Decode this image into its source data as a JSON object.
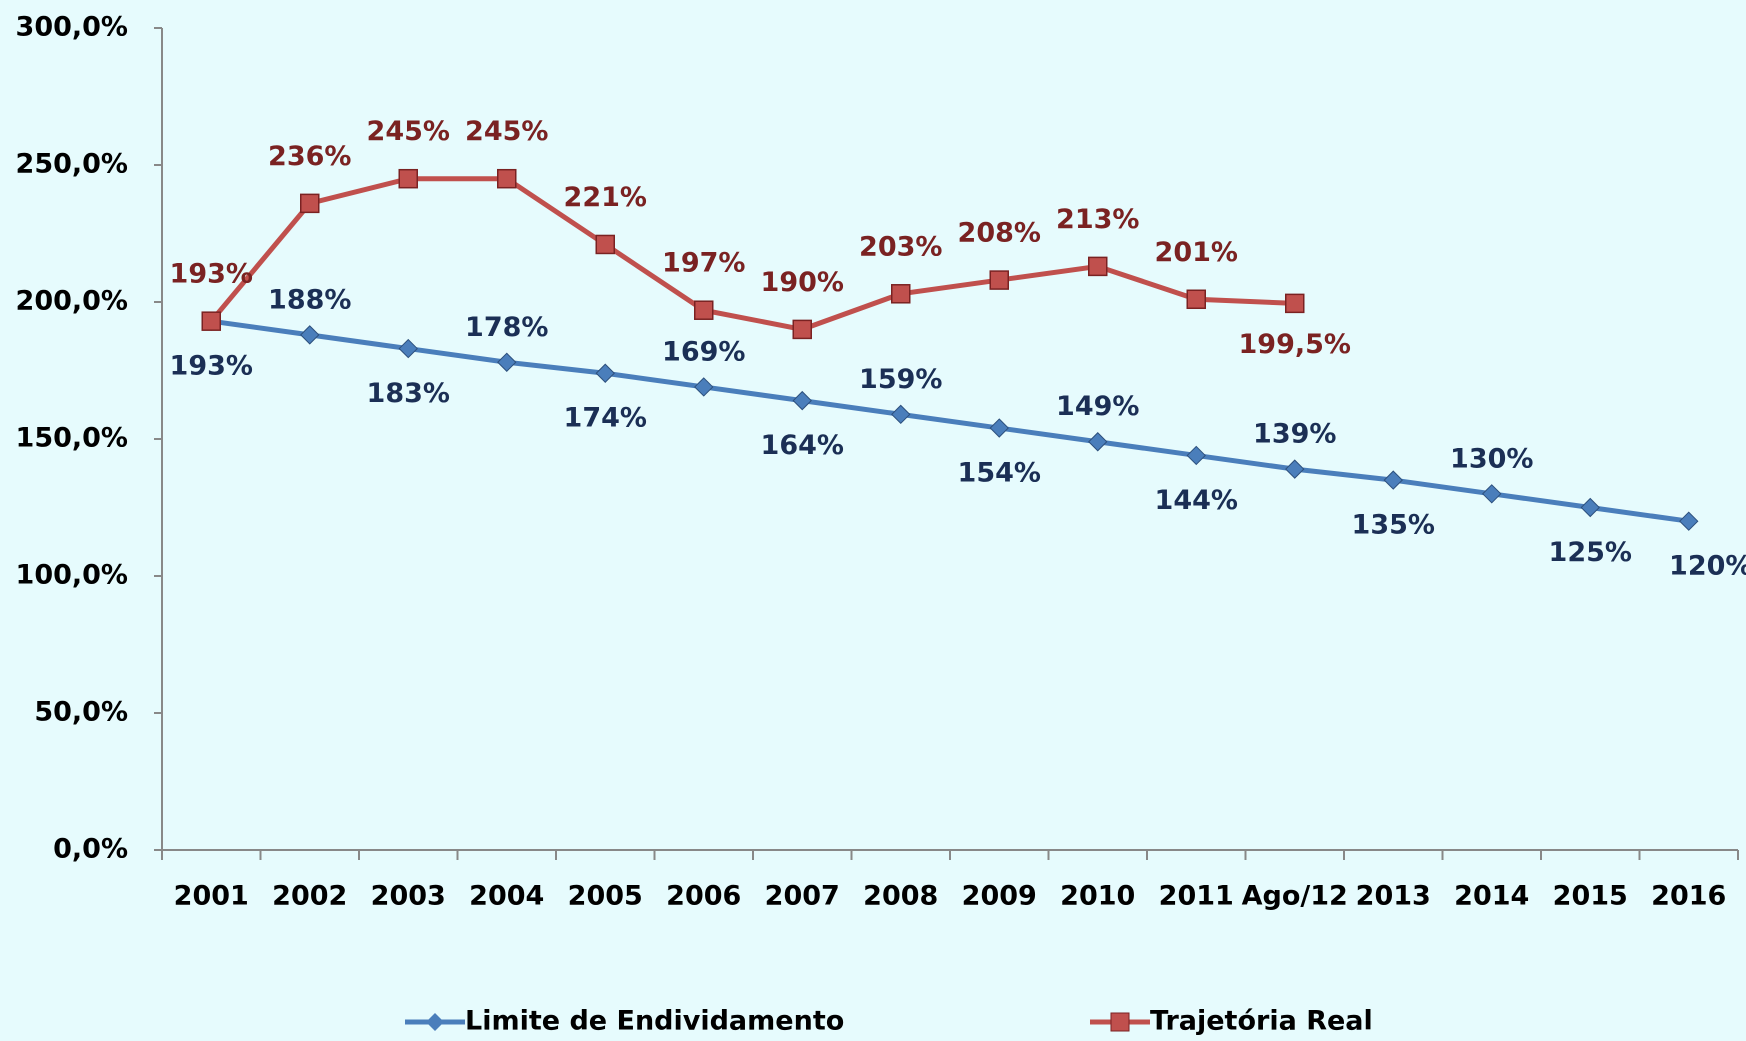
{
  "chart_data": {
    "type": "line",
    "categories": [
      "2001",
      "2002",
      "2003",
      "2004",
      "2005",
      "2006",
      "2007",
      "2008",
      "2009",
      "2010",
      "2011",
      "Ago/12",
      "2013",
      "2014",
      "2015",
      "2016"
    ],
    "series": [
      {
        "name": "Limite de Endividamento",
        "color": "#4a7ebb",
        "label_color": "#1b2f55",
        "values": [
          193,
          188,
          183,
          178,
          174,
          169,
          164,
          159,
          154,
          149,
          144,
          139,
          135,
          130,
          125,
          120
        ],
        "value_labels": [
          "193%",
          "188%",
          "183%",
          "178%",
          "174%",
          "169%",
          "164%",
          "159%",
          "154%",
          "149%",
          "144%",
          "139%",
          "135%",
          "130%",
          "125%",
          "120%"
        ]
      },
      {
        "name": "Trajetória Real",
        "color": "#c0504d",
        "label_color": "#7a2222",
        "values": [
          193,
          236,
          245,
          245,
          221,
          197,
          190,
          203,
          208,
          213,
          201,
          199.5,
          null,
          null,
          null,
          null
        ],
        "value_labels": [
          "193%",
          "236%",
          "245%",
          "245%",
          "221%",
          "197%",
          "190%",
          "203%",
          "208%",
          "213%",
          "201%",
          "199,5%",
          null,
          null,
          null,
          null
        ]
      }
    ],
    "ylim": [
      0,
      300
    ],
    "yticks": [
      {
        "value": 0,
        "label": "0,0%"
      },
      {
        "value": 50,
        "label": "50,0%"
      },
      {
        "value": 100,
        "label": "100,0%"
      },
      {
        "value": 150,
        "label": "150,0%"
      },
      {
        "value": 200,
        "label": "200,0%"
      },
      {
        "value": 250,
        "label": "250,0%"
      },
      {
        "value": 300,
        "label": "300,0%"
      }
    ],
    "legend": "bottom"
  }
}
